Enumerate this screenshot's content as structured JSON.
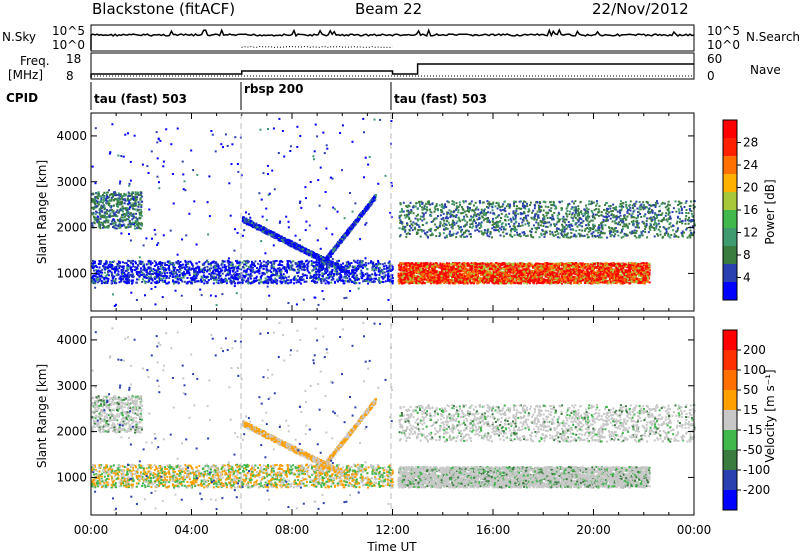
{
  "header": {
    "site": "Blackstone (fitACF)",
    "beam": "Beam 22",
    "date": "22/Nov/2012"
  },
  "params": {
    "nsky_label": "N.Sky",
    "nsearch_label": "N.Search",
    "freq_label_line1": "Freq.",
    "freq_label_line2": "[MHz]",
    "nave_label": "Nave",
    "cpid_label": "CPID",
    "noise_ticks_left": [
      "10^5",
      "10^0"
    ],
    "noise_ticks_right": [
      "10^5",
      "10^0"
    ],
    "freq_ticks": [
      "18",
      "8"
    ],
    "nave_ticks": [
      "60",
      "0"
    ],
    "cpid_segments": [
      {
        "label": "tau (fast) 503",
        "start_hr": 0
      },
      {
        "label": "rbsp 200",
        "start_hr": 6
      },
      {
        "label": "tau (fast) 503",
        "start_hr": 12
      }
    ]
  },
  "chart_data": [
    {
      "type": "heatmap",
      "ylabel": "Slant Range [km]",
      "xlim_hours": [
        0,
        24
      ],
      "ylim": [
        180,
        4500
      ],
      "y_ticks": [
        1000,
        2000,
        3000,
        4000
      ],
      "colorbar": {
        "label": "Power [dB]",
        "range": [
          0,
          32
        ],
        "ticks": [
          "4",
          "8",
          "12",
          "16",
          "20",
          "24",
          "28"
        ],
        "colors": [
          "#0000ff",
          "#2a3fb0",
          "#3a7c3f",
          "#3f9a70",
          "#40b84c",
          "#a8c83a",
          "#ffb000",
          "#ff7000",
          "#ff2000",
          "#ff0000"
        ]
      },
      "features": [
        {
          "desc": "E-region band",
          "hr": [
            0,
            12
          ],
          "range_km": [
            800,
            1300
          ]
        },
        {
          "desc": "strong power band",
          "hr": [
            12.2,
            22.2
          ],
          "range_km": [
            800,
            1300
          ],
          "dB": 26
        },
        {
          "desc": "far band",
          "hr": [
            12.2,
            24
          ],
          "range_km": [
            1800,
            2600
          ]
        }
      ]
    },
    {
      "type": "heatmap",
      "ylabel": "Slant Range [km]",
      "xlabel": "Time UT",
      "xlim_hours": [
        0,
        24
      ],
      "ylim": [
        180,
        4500
      ],
      "y_ticks": [
        1000,
        2000,
        3000,
        4000
      ],
      "x_ticks": [
        "00:00",
        "04:00",
        "08:00",
        "12:00",
        "16:00",
        "20:00",
        "00:00"
      ],
      "colorbar": {
        "label": "Velocity [m s⁻¹]",
        "range": [
          -250,
          250
        ],
        "ticks": [
          "200",
          "100",
          "50",
          "15",
          "-15",
          "-50",
          "-100",
          "-200"
        ],
        "colors": [
          "#0000ff",
          "#2a3fb0",
          "#3a7c3f",
          "#40b84c",
          "#c8c8c8",
          "#ffa000",
          "#ff7000",
          "#ff3000",
          "#ff0000"
        ]
      }
    }
  ]
}
